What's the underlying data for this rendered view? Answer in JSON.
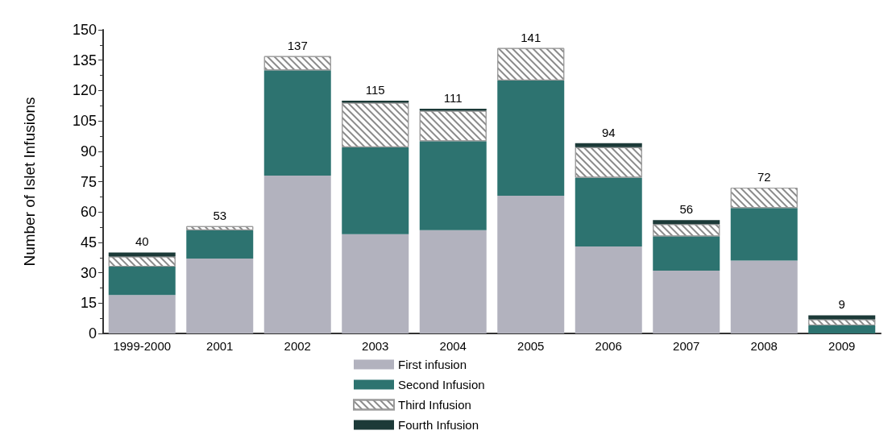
{
  "chart_data": {
    "type": "bar",
    "stacked": true,
    "ylabel": "Number of Islet Infusions",
    "categories": [
      "1999-2000",
      "2001",
      "2002",
      "2003",
      "2004",
      "2005",
      "2006",
      "2007",
      "2008",
      "2009"
    ],
    "series": [
      {
        "name": "First infusion",
        "color": "#b2b2be",
        "values": [
          19,
          37,
          78,
          49,
          51,
          68,
          43,
          31,
          36,
          0
        ]
      },
      {
        "name": "Second Infusion",
        "color": "#2d7370",
        "values": [
          14,
          14,
          52,
          43,
          44,
          57,
          34,
          17,
          26,
          4
        ]
      },
      {
        "name": "Third Infusion",
        "color": "#ffffff",
        "values": [
          5,
          2,
          7,
          22,
          15,
          16,
          15,
          6,
          10,
          3
        ]
      },
      {
        "name": "Fourth Infusion",
        "color": "#1c3a38",
        "values": [
          2,
          0,
          0,
          1,
          1,
          0,
          2,
          2,
          0,
          2
        ]
      }
    ],
    "totals": [
      "40",
      "53",
      "137",
      "115",
      "111",
      "141",
      "94",
      "56",
      "72",
      "9"
    ],
    "ylim": [
      0,
      150
    ],
    "yticks": [
      0,
      15,
      30,
      45,
      60,
      75,
      90,
      105,
      120,
      135,
      150
    ],
    "grid": false,
    "legend": "bottom"
  }
}
